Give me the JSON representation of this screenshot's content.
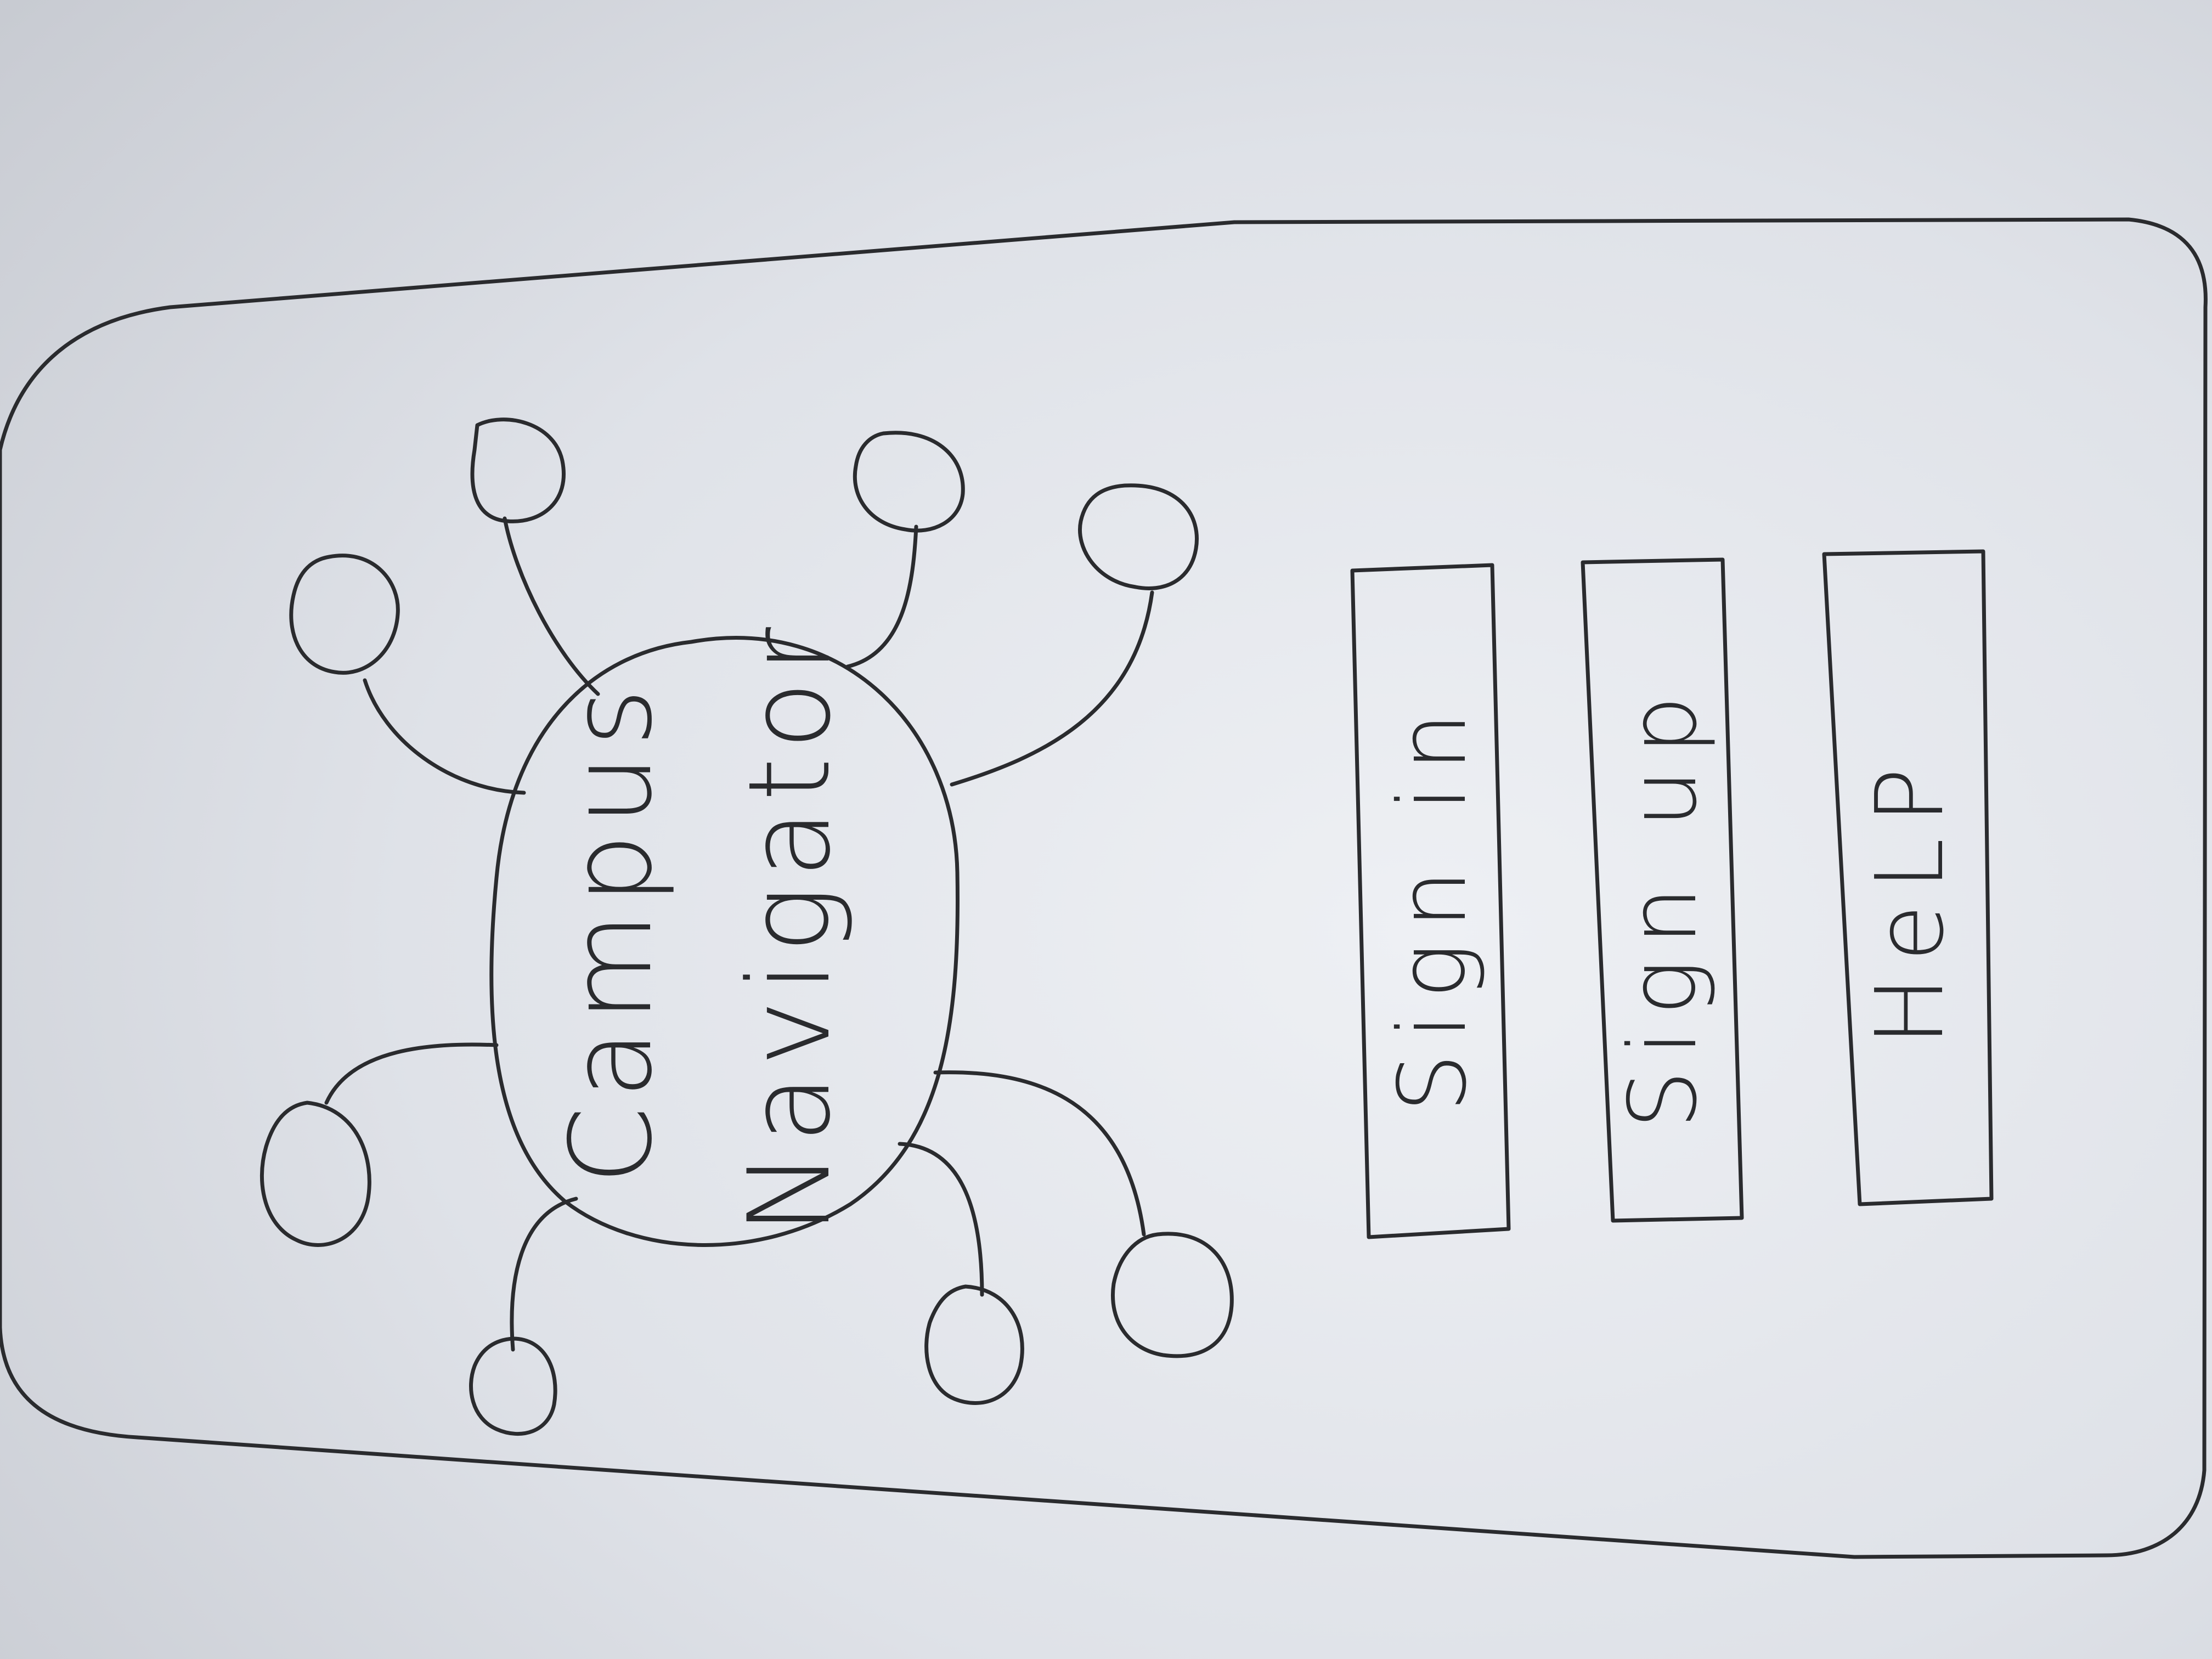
{
  "app": {
    "title_line_1": "Campus",
    "title_line_2": "Navigator"
  },
  "buttons": {
    "sign_in": "Sign in",
    "sign_up": "Sign up",
    "help": "HeLP"
  }
}
